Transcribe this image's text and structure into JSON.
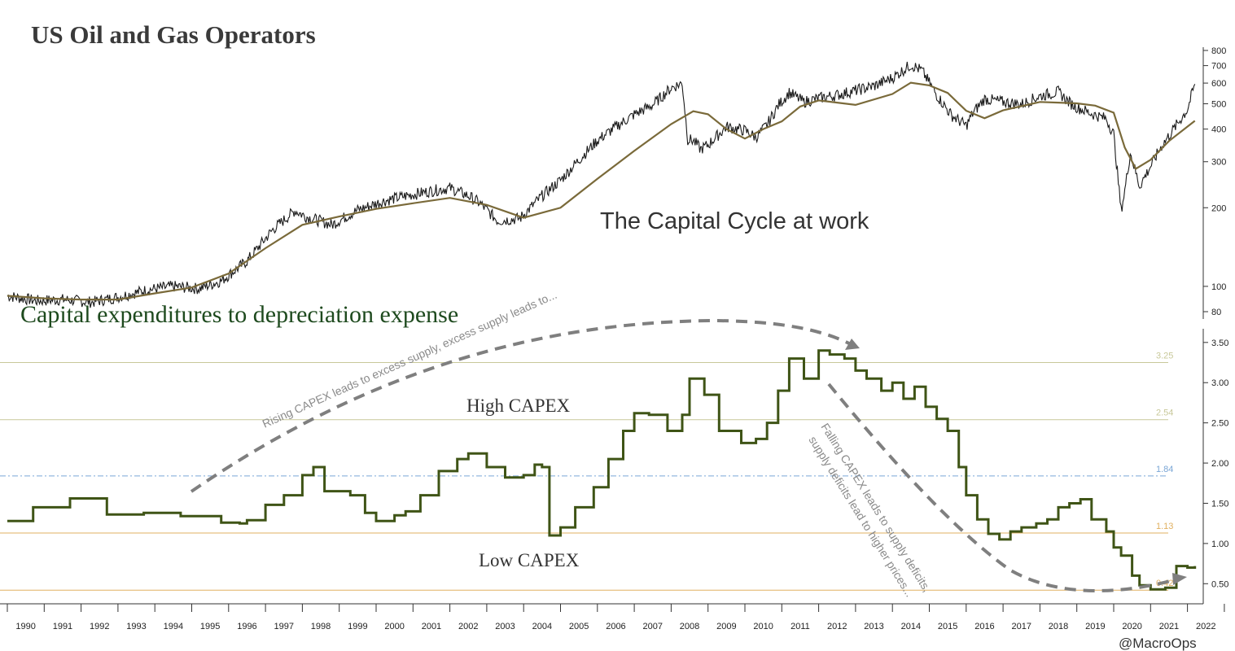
{
  "chart_data": [
    {
      "type": "line",
      "title": "US Oil and Gas Operators",
      "annotation": "The Capital Cycle at work",
      "yscale": "log",
      "ylim": [
        75,
        800
      ],
      "yticks": [
        80,
        100,
        200,
        300,
        400,
        500,
        600,
        700,
        800
      ],
      "ytick_labels": [
        "80",
        "100",
        "200",
        "300",
        "400",
        "500",
        "600",
        "700",
        "800"
      ],
      "series": [
        {
          "name": "Price",
          "color": "#1a1a1a",
          "x": [
            1990.0,
            1990.8,
            1991.5,
            1992.3,
            1993.0,
            1993.8,
            1994.5,
            1995.2,
            1995.8,
            1996.5,
            1997.2,
            1997.8,
            1998.1,
            1998.8,
            1999.5,
            2000.2,
            2000.8,
            2001.5,
            2002.0,
            2002.5,
            2002.8,
            2003.3,
            2003.9,
            2004.5,
            2005.0,
            2005.5,
            2006.0,
            2006.5,
            2007.0,
            2007.5,
            2008.0,
            2008.3,
            2008.45,
            2008.6,
            2008.8,
            2009.0,
            2009.5,
            2010.0,
            2010.3,
            2010.6,
            2010.9,
            2011.2,
            2011.6,
            2012.0,
            2012.5,
            2013.0,
            2013.5,
            2014.0,
            2014.5,
            2014.8,
            2015.2,
            2015.6,
            2016.0,
            2016.2,
            2016.5,
            2017.0,
            2017.5,
            2018.0,
            2018.5,
            2018.8,
            2019.0,
            2019.4,
            2019.8,
            2020.0,
            2020.2,
            2020.3,
            2020.45,
            2020.7,
            2021.0,
            2021.3,
            2021.6,
            2022.0,
            2022.2
          ],
          "values": [
            92,
            88,
            89,
            87,
            91,
            97,
            100,
            98,
            105,
            125,
            165,
            195,
            185,
            172,
            196,
            212,
            222,
            232,
            238,
            222,
            209,
            178,
            182,
            222,
            255,
            305,
            362,
            408,
            455,
            495,
            575,
            600,
            365,
            362,
            335,
            348,
            408,
            395,
            372,
            415,
            492,
            552,
            508,
            525,
            540,
            562,
            585,
            628,
            705,
            670,
            540,
            452,
            412,
            465,
            522,
            508,
            498,
            535,
            555,
            505,
            485,
            458,
            438,
            382,
            195,
            232,
            325,
            242,
            288,
            345,
            395,
            475,
            595
          ]
        },
        {
          "name": "Moving Average",
          "color": "#7a6a3a",
          "x": [
            1990.0,
            1991.0,
            1992.0,
            1993.0,
            1994.0,
            1995.0,
            1996.0,
            1997.0,
            1998.0,
            1999.0,
            2000.0,
            2001.0,
            2002.0,
            2003.0,
            2004.0,
            2005.0,
            2006.0,
            2007.0,
            2008.0,
            2008.6,
            2009.0,
            2009.5,
            2010.0,
            2010.5,
            2011.0,
            2011.5,
            2012.0,
            2013.0,
            2014.0,
            2014.5,
            2015.0,
            2015.5,
            2016.0,
            2016.5,
            2017.0,
            2018.0,
            2018.5,
            2019.0,
            2019.5,
            2020.0,
            2020.3,
            2020.6,
            2021.0,
            2021.5,
            2022.2
          ],
          "values": [
            92,
            90,
            89,
            89,
            94,
            99,
            112,
            140,
            172,
            185,
            198,
            208,
            218,
            205,
            183,
            200,
            258,
            330,
            418,
            468,
            456,
            400,
            368,
            400,
            428,
            488,
            515,
            495,
            545,
            602,
            588,
            550,
            470,
            440,
            472,
            508,
            505,
            502,
            492,
            462,
            340,
            282,
            305,
            360,
            430
          ]
        }
      ]
    },
    {
      "type": "line",
      "title": "Capital expenditures to depreciation expense",
      "step": true,
      "ylim": [
        0.25,
        3.65
      ],
      "yticks": [
        0.5,
        1.0,
        1.5,
        2.0,
        2.5,
        3.0,
        3.5
      ],
      "ytick_labels": [
        "0.50",
        "1.00",
        "1.50",
        "2.00",
        "2.50",
        "3.00",
        "3.50"
      ],
      "reference_lines": [
        {
          "value": 3.25,
          "label": "3.25",
          "style": "solid",
          "color": "#c8c89a"
        },
        {
          "value": 2.54,
          "label": "2.54",
          "style": "solid",
          "color": "#c8c89a"
        },
        {
          "value": 1.84,
          "label": "1.84",
          "style": "dashed",
          "color": "#7aa6d6"
        },
        {
          "value": 1.13,
          "label": "1.13",
          "style": "solid",
          "color": "#e0b060"
        },
        {
          "value": 0.42,
          "label": "0.42",
          "style": "solid",
          "color": "#e0b060"
        }
      ],
      "series": [
        {
          "name": "CAPEX/Depreciation",
          "color": "#3f5416",
          "x": [
            1990.0,
            1990.7,
            1991.7,
            1992.7,
            1993.7,
            1994.7,
            1995.8,
            1996.3,
            1996.5,
            1997.0,
            1997.5,
            1998.0,
            1998.3,
            1998.6,
            1999.3,
            1999.7,
            2000.0,
            2000.5,
            2000.8,
            2001.2,
            2001.7,
            2002.2,
            2002.5,
            2003.0,
            2003.5,
            2004.0,
            2004.3,
            2004.5,
            2004.7,
            2005.0,
            2005.4,
            2005.9,
            2006.3,
            2006.7,
            2007.0,
            2007.4,
            2007.9,
            2008.3,
            2008.5,
            2008.9,
            2009.3,
            2009.9,
            2010.3,
            2010.6,
            2010.9,
            2011.2,
            2011.6,
            2012.0,
            2012.3,
            2012.7,
            2013.0,
            2013.3,
            2013.7,
            2014.0,
            2014.3,
            2014.6,
            2014.9,
            2015.2,
            2015.5,
            2015.8,
            2016.0,
            2016.3,
            2016.6,
            2016.9,
            2017.2,
            2017.5,
            2017.9,
            2018.2,
            2018.5,
            2018.8,
            2019.1,
            2019.4,
            2019.8,
            2020.0,
            2020.2,
            2020.5,
            2020.7,
            2021.0,
            2021.4,
            2021.7,
            2022.0,
            2022.2
          ],
          "values": [
            1.28,
            1.45,
            1.56,
            1.36,
            1.38,
            1.34,
            1.26,
            1.25,
            1.29,
            1.48,
            1.6,
            1.85,
            1.95,
            1.65,
            1.6,
            1.38,
            1.28,
            1.35,
            1.4,
            1.6,
            1.9,
            2.05,
            2.12,
            1.95,
            1.82,
            1.85,
            1.98,
            1.95,
            1.1,
            1.2,
            1.45,
            1.7,
            2.05,
            2.4,
            2.62,
            2.6,
            2.4,
            2.6,
            3.05,
            2.85,
            2.4,
            2.25,
            2.3,
            2.5,
            2.9,
            3.3,
            3.05,
            3.4,
            3.35,
            3.3,
            3.15,
            3.05,
            2.9,
            3.0,
            2.8,
            2.95,
            2.7,
            2.55,
            2.4,
            1.95,
            1.6,
            1.3,
            1.12,
            1.05,
            1.15,
            1.2,
            1.25,
            1.3,
            1.45,
            1.5,
            1.55,
            1.3,
            1.15,
            0.95,
            0.85,
            0.6,
            0.48,
            0.43,
            0.45,
            0.72,
            0.7,
            0.72
          ]
        }
      ],
      "annotations": [
        {
          "text": "High CAPEX"
        },
        {
          "text": "Low CAPEX"
        },
        {
          "text": "Rising CAPEX leads to excess supply, excess supply leads to..."
        },
        {
          "text": "Falling CAPEX leads to supply deficits,"
        },
        {
          "text": "supply deficits lead to higher prices..."
        }
      ]
    }
  ],
  "xaxis": {
    "years": [
      "1990",
      "1991",
      "1992",
      "1993",
      "1994",
      "1995",
      "1996",
      "1997",
      "1998",
      "1999",
      "2000",
      "2001",
      "2002",
      "2003",
      "2004",
      "2005",
      "2006",
      "2007",
      "2008",
      "2009",
      "2010",
      "2011",
      "2012",
      "2013",
      "2014",
      "2015",
      "2016",
      "2017",
      "2018",
      "2019",
      "2020",
      "2021",
      "2022"
    ]
  },
  "credit": "@MacroOps"
}
